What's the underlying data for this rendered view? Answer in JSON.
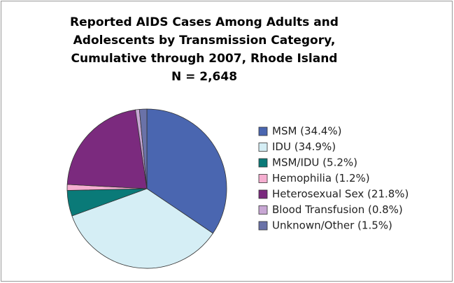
{
  "chart_data": {
    "type": "pie",
    "title": [
      "Reported AIDS Cases Among Adults and",
      "Adolescents by Transmission Category,",
      "Cumulative through 2007, Rhode Island"
    ],
    "subtitle": "N = 2,648",
    "categories": [
      "MSM (34.4%)",
      "IDU (34.9%)",
      "MSM/IDU (5.2%)",
      "Hemophilia (1.2%)",
      "Heterosexual Sex (21.8%)",
      "Blood Transfusion (0.8%)",
      "Unknown/Other (1.5%)"
    ],
    "values": [
      34.4,
      34.9,
      5.2,
      1.2,
      21.8,
      0.8,
      1.5
    ],
    "colors": [
      "#4a66b0",
      "#d5eef5",
      "#0a7a78",
      "#f5aed0",
      "#7b2a7e",
      "#c8a7d4",
      "#6a72a8"
    ],
    "legend": "right"
  }
}
